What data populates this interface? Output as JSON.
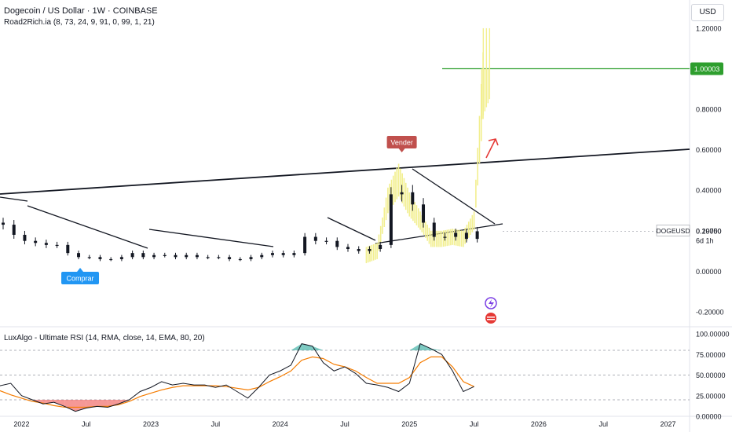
{
  "header": {
    "title": "Dogecoin / US Dollar · 1W · COINBASE",
    "indicator": "Road2Rich.ia (8, 73, 24, 9, 91, 0, 99, 1, 21)",
    "currency_button": "USD"
  },
  "annotations": {
    "sell_label": "Vender",
    "buy_label": "Comprar",
    "target_price_label": "1.00003",
    "symbol_label": "DOGEUSD",
    "last_price_label": "0.19750",
    "countdown_label": "6d 1h"
  },
  "colors": {
    "candles": "#131722",
    "signal_line": "#f2ef8f",
    "target_line": "#2e9e2e",
    "sell_badge": "#c0504d",
    "buy_badge": "#2196f3",
    "rsi_line": "#131722",
    "rsi_signal": "#f57c00",
    "rsi_overbought_fill": "#26a69a",
    "rsi_oversold_fill": "#ef5350",
    "arrow": "#e53935"
  },
  "chart_data": [
    {
      "type": "candlestick",
      "title": "Dogecoin / US Dollar · 1W · COINBASE",
      "x_ticks": [
        "2022",
        "Jul",
        "2023",
        "Jul",
        "2024",
        "Jul",
        "2025",
        "Jul",
        "2026",
        "Jul",
        "2027"
      ],
      "y_ticks": [
        "1.20000",
        "1.00000",
        "0.80000",
        "0.60000",
        "0.40000",
        "0.20000",
        "0.00000",
        "-0.20000"
      ],
      "ylim": [
        -0.27,
        1.32
      ],
      "last_price": 0.1975,
      "target_level": 1.00003,
      "x": [
        "2021-10",
        "2021-11",
        "2021-12",
        "2022-01",
        "2022-02",
        "2022-03",
        "2022-04",
        "2022-05",
        "2022-06",
        "2022-07",
        "2022-08",
        "2022-09",
        "2022-10",
        "2022-11",
        "2022-12",
        "2023-01",
        "2023-02",
        "2023-03",
        "2023-04",
        "2023-05",
        "2023-06",
        "2023-07",
        "2023-08",
        "2023-09",
        "2023-10",
        "2023-11",
        "2023-12",
        "2024-01",
        "2024-02",
        "2024-03",
        "2024-04",
        "2024-05",
        "2024-06",
        "2024-07",
        "2024-08",
        "2024-09",
        "2024-10",
        "2024-11",
        "2024-12",
        "2025-01",
        "2025-02",
        "2025-03",
        "2025-04",
        "2025-05",
        "2025-06",
        "2025-07"
      ],
      "close": [
        0.24,
        0.23,
        0.18,
        0.15,
        0.14,
        0.13,
        0.13,
        0.09,
        0.07,
        0.07,
        0.06,
        0.06,
        0.07,
        0.09,
        0.07,
        0.08,
        0.08,
        0.07,
        0.08,
        0.07,
        0.07,
        0.07,
        0.06,
        0.06,
        0.07,
        0.08,
        0.09,
        0.08,
        0.09,
        0.17,
        0.15,
        0.15,
        0.12,
        0.11,
        0.1,
        0.11,
        0.13,
        0.38,
        0.39,
        0.33,
        0.24,
        0.17,
        0.17,
        0.19,
        0.16,
        0.1975
      ],
      "signal_band": {
        "name": "Road2Rich.ia",
        "x": [
          "2024-09",
          "2024-10",
          "2024-11",
          "2024-12",
          "2025-01",
          "2025-02",
          "2025-03",
          "2025-04",
          "2025-05",
          "2025-06",
          "2025-07",
          "2025-08"
        ],
        "values": [
          0.08,
          0.1,
          0.35,
          0.45,
          0.33,
          0.25,
          0.16,
          0.16,
          0.17,
          0.16,
          0.25,
          1.05
        ]
      },
      "trendlines": 9,
      "markers": [
        {
          "label": "Vender",
          "x": "2024-12",
          "price": 0.48
        },
        {
          "label": "Comprar",
          "x": "2022-06",
          "price": 0.05
        }
      ]
    },
    {
      "type": "line",
      "title": "LuxAlgo - Ultimate RSI (14, RMA, close, 14, EMA, 80, 20)",
      "ylim": [
        0,
        100
      ],
      "y_ticks": [
        "100.00000",
        "75.00000",
        "50.00000",
        "25.00000",
        "0.00000"
      ],
      "levels": [
        80,
        50,
        20
      ],
      "series": [
        {
          "name": "Ultimate RSI",
          "x": [
            "2021-10",
            "2021-11",
            "2021-12",
            "2022-01",
            "2022-02",
            "2022-03",
            "2022-04",
            "2022-05",
            "2022-06",
            "2022-07",
            "2022-08",
            "2022-09",
            "2022-10",
            "2022-11",
            "2022-12",
            "2023-01",
            "2023-02",
            "2023-03",
            "2023-04",
            "2023-05",
            "2023-06",
            "2023-07",
            "2023-08",
            "2023-09",
            "2023-10",
            "2023-11",
            "2023-12",
            "2024-01",
            "2024-02",
            "2024-03",
            "2024-04",
            "2024-05",
            "2024-06",
            "2024-07",
            "2024-08",
            "2024-09",
            "2024-10",
            "2024-11",
            "2024-12",
            "2025-01",
            "2025-02",
            "2025-03",
            "2025-04",
            "2025-05",
            "2025-06",
            "2025-07"
          ],
          "values": [
            40,
            37,
            40,
            25,
            20,
            15,
            17,
            12,
            6,
            10,
            12,
            11,
            15,
            20,
            30,
            35,
            42,
            38,
            40,
            38,
            38,
            35,
            38,
            30,
            22,
            35,
            50,
            55,
            62,
            88,
            85,
            65,
            55,
            60,
            52,
            40,
            38,
            35,
            30,
            40,
            88,
            82,
            75,
            55,
            30,
            36
          ]
        },
        {
          "name": "Signal",
          "x": [
            "2021-10",
            "2021-11",
            "2021-12",
            "2022-01",
            "2022-02",
            "2022-03",
            "2022-04",
            "2022-05",
            "2022-06",
            "2022-07",
            "2022-08",
            "2022-09",
            "2022-10",
            "2022-11",
            "2022-12",
            "2023-01",
            "2023-02",
            "2023-03",
            "2023-04",
            "2023-05",
            "2023-06",
            "2023-07",
            "2023-08",
            "2023-09",
            "2023-10",
            "2023-11",
            "2023-12",
            "2024-01",
            "2024-02",
            "2024-03",
            "2024-04",
            "2024-05",
            "2024-06",
            "2024-07",
            "2024-08",
            "2024-09",
            "2024-10",
            "2024-11",
            "2024-12",
            "2025-01",
            "2025-02",
            "2025-03",
            "2025-04",
            "2025-05",
            "2025-06",
            "2025-07"
          ],
          "values": [
            35,
            31,
            26,
            22,
            18,
            16,
            13,
            11,
            11,
            11,
            12,
            12,
            14,
            18,
            24,
            28,
            32,
            35,
            37,
            37,
            37,
            37,
            36,
            34,
            32,
            35,
            42,
            48,
            55,
            68,
            72,
            70,
            63,
            60,
            55,
            47,
            40,
            40,
            40,
            47,
            65,
            72,
            72,
            60,
            42,
            36
          ]
        }
      ]
    }
  ]
}
